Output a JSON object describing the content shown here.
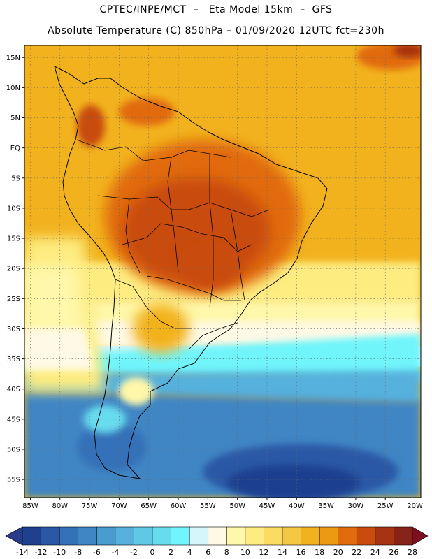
{
  "header": {
    "line1": "CPTEC/INPE/MCT  –   Eta Model 15km  –  GFS",
    "line2": "Absolute Temperature (C) 850hPa – 01/09/2020 12UTC fct=230h"
  },
  "map": {
    "lon_range": [
      -86,
      -19
    ],
    "lat_range": [
      -58,
      17
    ],
    "lat_ticks": [
      {
        "value": 15,
        "label": "15N"
      },
      {
        "value": 10,
        "label": "10N"
      },
      {
        "value": 5,
        "label": "5N"
      },
      {
        "value": 0,
        "label": "EQ"
      },
      {
        "value": -5,
        "label": "5S"
      },
      {
        "value": -10,
        "label": "10S"
      },
      {
        "value": -15,
        "label": "15S"
      },
      {
        "value": -20,
        "label": "20S"
      },
      {
        "value": -25,
        "label": "25S"
      },
      {
        "value": -30,
        "label": "30S"
      },
      {
        "value": -35,
        "label": "35S"
      },
      {
        "value": -40,
        "label": "40S"
      },
      {
        "value": -45,
        "label": "45S"
      },
      {
        "value": -50,
        "label": "50S"
      },
      {
        "value": -55,
        "label": "55S"
      }
    ],
    "lon_ticks": [
      {
        "value": -85,
        "label": "85W"
      },
      {
        "value": -80,
        "label": "80W"
      },
      {
        "value": -75,
        "label": "75W"
      },
      {
        "value": -70,
        "label": "70W"
      },
      {
        "value": -65,
        "label": "65W"
      },
      {
        "value": -60,
        "label": "60W"
      },
      {
        "value": -55,
        "label": "55W"
      },
      {
        "value": -50,
        "label": "50W"
      },
      {
        "value": -45,
        "label": "45W"
      },
      {
        "value": -40,
        "label": "40W"
      },
      {
        "value": -35,
        "label": "35W"
      },
      {
        "value": -30,
        "label": "30W"
      },
      {
        "value": -25,
        "label": "25W"
      },
      {
        "value": -20,
        "label": "20W"
      }
    ],
    "grid": true,
    "grid_style": "dotted"
  },
  "colorbar": {
    "labels": [
      "-14",
      "-12",
      "-10",
      "-8",
      "-6",
      "-4",
      "-2",
      "0",
      "2",
      "4",
      "6",
      "8",
      "10",
      "12",
      "14",
      "16",
      "18",
      "20",
      "22",
      "24",
      "26",
      "28"
    ],
    "colors": [
      "#1f3f8f",
      "#2a58a6",
      "#3571b8",
      "#3f86c4",
      "#4a9bcf",
      "#57b1dc",
      "#5ec8e6",
      "#67dcef",
      "#6ff5fb",
      "#d5f6fb",
      "#fff9e5",
      "#fff7a9",
      "#fdec80",
      "#fadc63",
      "#f5c843",
      "#f2b21e",
      "#eb9a12",
      "#e16b0d",
      "#c94c0e",
      "#a63311",
      "#872317"
    ],
    "under_color": "#2a3a8a",
    "over_color": "#7c1020"
  }
}
